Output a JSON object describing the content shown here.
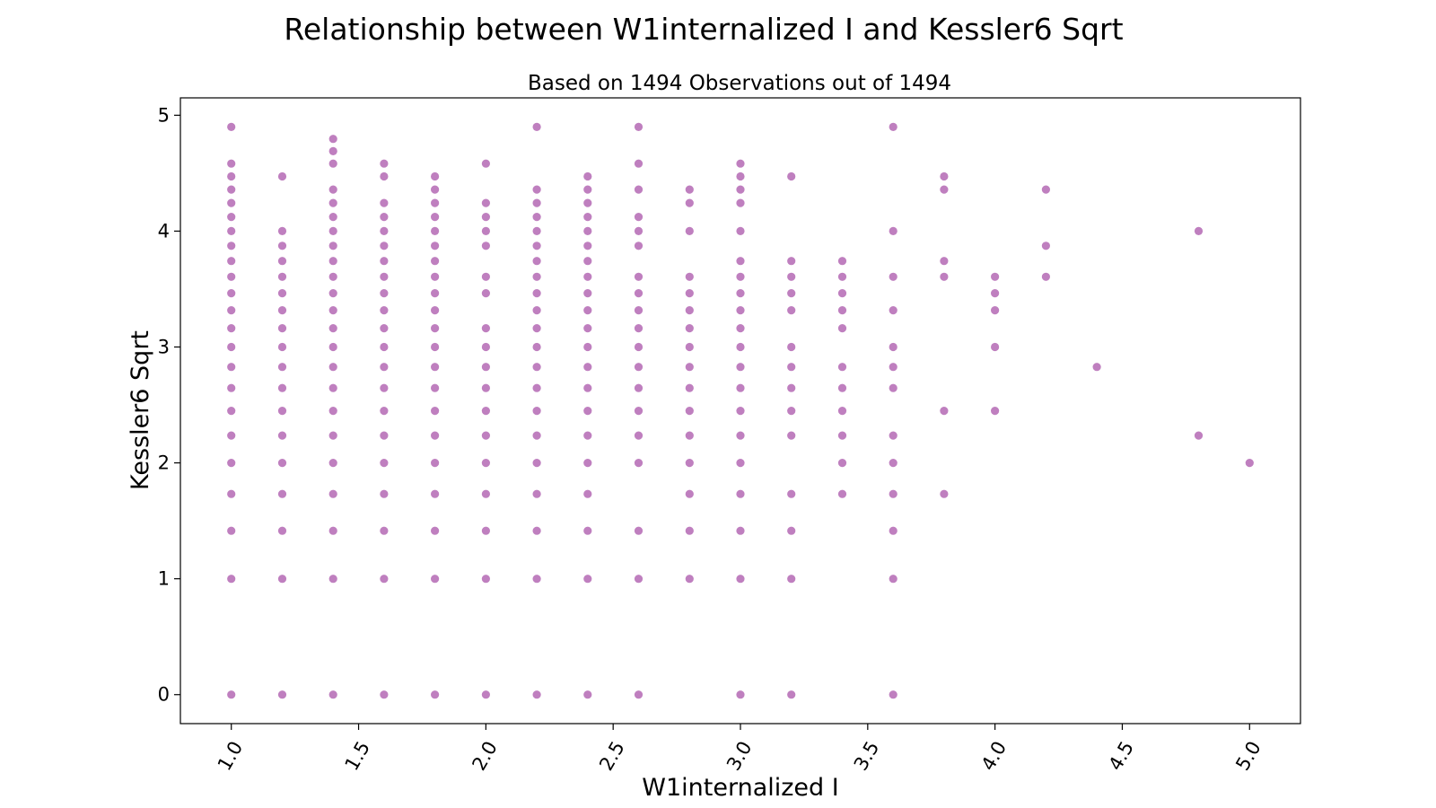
{
  "chart_data": {
    "type": "scatter",
    "title": "Relationship between W1internalized I and Kessler6 Sqrt",
    "subtitle": "Based on 1494 Observations out of 1494",
    "xlabel": "W1internalized I",
    "ylabel": "Kessler6 Sqrt",
    "xlim": [
      0.8,
      5.2
    ],
    "ylim": [
      -0.25,
      5.15
    ],
    "xticks": [
      "1.0",
      "1.5",
      "2.0",
      "2.5",
      "3.0",
      "3.5",
      "4.0",
      "4.5",
      "5.0"
    ],
    "yticks": [
      "0",
      "1",
      "2",
      "3",
      "4",
      "5"
    ],
    "tick_rotation_x": 60,
    "grid": false,
    "point_color": "#800080",
    "point_alpha": 0.5,
    "series": [
      {
        "points": [
          [
            1.0,
            0
          ],
          [
            1.0,
            1
          ],
          [
            1.0,
            1.414
          ],
          [
            1.0,
            1.732
          ],
          [
            1.0,
            2
          ],
          [
            1.0,
            2.236
          ],
          [
            1.0,
            2.449
          ],
          [
            1.0,
            2.646
          ],
          [
            1.0,
            2.828
          ],
          [
            1.0,
            3
          ],
          [
            1.0,
            3.162
          ],
          [
            1.0,
            3.317
          ],
          [
            1.0,
            3.464
          ],
          [
            1.0,
            3.606
          ],
          [
            1.0,
            3.742
          ],
          [
            1.0,
            3.873
          ],
          [
            1.0,
            4
          ],
          [
            1.0,
            4.123
          ],
          [
            1.0,
            4.243
          ],
          [
            1.0,
            4.359
          ],
          [
            1.0,
            4.472
          ],
          [
            1.0,
            4.583
          ],
          [
            1.0,
            4.899
          ],
          [
            1.2,
            0
          ],
          [
            1.2,
            1
          ],
          [
            1.2,
            1.414
          ],
          [
            1.2,
            1.732
          ],
          [
            1.2,
            2
          ],
          [
            1.2,
            2.236
          ],
          [
            1.2,
            2.449
          ],
          [
            1.2,
            2.646
          ],
          [
            1.2,
            2.828
          ],
          [
            1.2,
            3
          ],
          [
            1.2,
            3.162
          ],
          [
            1.2,
            3.317
          ],
          [
            1.2,
            3.464
          ],
          [
            1.2,
            3.606
          ],
          [
            1.2,
            3.742
          ],
          [
            1.2,
            3.873
          ],
          [
            1.2,
            4
          ],
          [
            1.2,
            4.472
          ],
          [
            1.4,
            0
          ],
          [
            1.4,
            1
          ],
          [
            1.4,
            1.414
          ],
          [
            1.4,
            1.732
          ],
          [
            1.4,
            2
          ],
          [
            1.4,
            2.236
          ],
          [
            1.4,
            2.449
          ],
          [
            1.4,
            2.646
          ],
          [
            1.4,
            2.828
          ],
          [
            1.4,
            3
          ],
          [
            1.4,
            3.162
          ],
          [
            1.4,
            3.317
          ],
          [
            1.4,
            3.464
          ],
          [
            1.4,
            3.606
          ],
          [
            1.4,
            3.742
          ],
          [
            1.4,
            3.873
          ],
          [
            1.4,
            4
          ],
          [
            1.4,
            4.123
          ],
          [
            1.4,
            4.243
          ],
          [
            1.4,
            4.359
          ],
          [
            1.4,
            4.583
          ],
          [
            1.4,
            4.69
          ],
          [
            1.4,
            4.796
          ],
          [
            1.6,
            0
          ],
          [
            1.6,
            1
          ],
          [
            1.6,
            1.414
          ],
          [
            1.6,
            1.732
          ],
          [
            1.6,
            2
          ],
          [
            1.6,
            2.236
          ],
          [
            1.6,
            2.449
          ],
          [
            1.6,
            2.646
          ],
          [
            1.6,
            2.828
          ],
          [
            1.6,
            3
          ],
          [
            1.6,
            3.162
          ],
          [
            1.6,
            3.317
          ],
          [
            1.6,
            3.464
          ],
          [
            1.6,
            3.606
          ],
          [
            1.6,
            3.742
          ],
          [
            1.6,
            3.873
          ],
          [
            1.6,
            4
          ],
          [
            1.6,
            4.123
          ],
          [
            1.6,
            4.243
          ],
          [
            1.6,
            4.472
          ],
          [
            1.6,
            4.583
          ],
          [
            1.8,
            0
          ],
          [
            1.8,
            1
          ],
          [
            1.8,
            1.414
          ],
          [
            1.8,
            1.732
          ],
          [
            1.8,
            2
          ],
          [
            1.8,
            2.236
          ],
          [
            1.8,
            2.449
          ],
          [
            1.8,
            2.646
          ],
          [
            1.8,
            2.828
          ],
          [
            1.8,
            3
          ],
          [
            1.8,
            3.162
          ],
          [
            1.8,
            3.317
          ],
          [
            1.8,
            3.464
          ],
          [
            1.8,
            3.606
          ],
          [
            1.8,
            3.742
          ],
          [
            1.8,
            3.873
          ],
          [
            1.8,
            4
          ],
          [
            1.8,
            4.123
          ],
          [
            1.8,
            4.243
          ],
          [
            1.8,
            4.359
          ],
          [
            1.8,
            4.472
          ],
          [
            2.0,
            0
          ],
          [
            2.0,
            1
          ],
          [
            2.0,
            1.414
          ],
          [
            2.0,
            1.732
          ],
          [
            2.0,
            2
          ],
          [
            2.0,
            2.236
          ],
          [
            2.0,
            2.449
          ],
          [
            2.0,
            2.646
          ],
          [
            2.0,
            2.828
          ],
          [
            2.0,
            3
          ],
          [
            2.0,
            3.162
          ],
          [
            2.0,
            3.464
          ],
          [
            2.0,
            3.606
          ],
          [
            2.0,
            3.873
          ],
          [
            2.0,
            4
          ],
          [
            2.0,
            4.123
          ],
          [
            2.0,
            4.243
          ],
          [
            2.0,
            4.583
          ],
          [
            2.2,
            0
          ],
          [
            2.2,
            1
          ],
          [
            2.2,
            1.414
          ],
          [
            2.2,
            1.732
          ],
          [
            2.2,
            2
          ],
          [
            2.2,
            2.236
          ],
          [
            2.2,
            2.449
          ],
          [
            2.2,
            2.646
          ],
          [
            2.2,
            2.828
          ],
          [
            2.2,
            3
          ],
          [
            2.2,
            3.162
          ],
          [
            2.2,
            3.317
          ],
          [
            2.2,
            3.464
          ],
          [
            2.2,
            3.606
          ],
          [
            2.2,
            3.742
          ],
          [
            2.2,
            3.873
          ],
          [
            2.2,
            4
          ],
          [
            2.2,
            4.123
          ],
          [
            2.2,
            4.243
          ],
          [
            2.2,
            4.359
          ],
          [
            2.2,
            4.899
          ],
          [
            2.4,
            0
          ],
          [
            2.4,
            1
          ],
          [
            2.4,
            1.414
          ],
          [
            2.4,
            1.732
          ],
          [
            2.4,
            2
          ],
          [
            2.4,
            2.236
          ],
          [
            2.4,
            2.449
          ],
          [
            2.4,
            2.646
          ],
          [
            2.4,
            2.828
          ],
          [
            2.4,
            3
          ],
          [
            2.4,
            3.162
          ],
          [
            2.4,
            3.317
          ],
          [
            2.4,
            3.464
          ],
          [
            2.4,
            3.606
          ],
          [
            2.4,
            3.742
          ],
          [
            2.4,
            3.873
          ],
          [
            2.4,
            4
          ],
          [
            2.4,
            4.123
          ],
          [
            2.4,
            4.243
          ],
          [
            2.4,
            4.359
          ],
          [
            2.4,
            4.472
          ],
          [
            2.6,
            0
          ],
          [
            2.6,
            1
          ],
          [
            2.6,
            1.414
          ],
          [
            2.6,
            2
          ],
          [
            2.6,
            2.236
          ],
          [
            2.6,
            2.449
          ],
          [
            2.6,
            2.646
          ],
          [
            2.6,
            2.828
          ],
          [
            2.6,
            3
          ],
          [
            2.6,
            3.162
          ],
          [
            2.6,
            3.317
          ],
          [
            2.6,
            3.464
          ],
          [
            2.6,
            3.606
          ],
          [
            2.6,
            3.873
          ],
          [
            2.6,
            4
          ],
          [
            2.6,
            4.123
          ],
          [
            2.6,
            4.359
          ],
          [
            2.6,
            4.583
          ],
          [
            2.6,
            4.899
          ],
          [
            2.8,
            1
          ],
          [
            2.8,
            1.414
          ],
          [
            2.8,
            1.732
          ],
          [
            2.8,
            2
          ],
          [
            2.8,
            2.236
          ],
          [
            2.8,
            2.449
          ],
          [
            2.8,
            2.646
          ],
          [
            2.8,
            2.828
          ],
          [
            2.8,
            3
          ],
          [
            2.8,
            3.162
          ],
          [
            2.8,
            3.317
          ],
          [
            2.8,
            3.464
          ],
          [
            2.8,
            3.606
          ],
          [
            2.8,
            4
          ],
          [
            2.8,
            4.243
          ],
          [
            2.8,
            4.359
          ],
          [
            3.0,
            0
          ],
          [
            3.0,
            1
          ],
          [
            3.0,
            1.414
          ],
          [
            3.0,
            1.732
          ],
          [
            3.0,
            2
          ],
          [
            3.0,
            2.236
          ],
          [
            3.0,
            2.449
          ],
          [
            3.0,
            2.646
          ],
          [
            3.0,
            2.828
          ],
          [
            3.0,
            3
          ],
          [
            3.0,
            3.162
          ],
          [
            3.0,
            3.317
          ],
          [
            3.0,
            3.464
          ],
          [
            3.0,
            3.606
          ],
          [
            3.0,
            3.742
          ],
          [
            3.0,
            4
          ],
          [
            3.0,
            4.243
          ],
          [
            3.0,
            4.359
          ],
          [
            3.0,
            4.472
          ],
          [
            3.0,
            4.583
          ],
          [
            3.2,
            0
          ],
          [
            3.2,
            1
          ],
          [
            3.2,
            1.414
          ],
          [
            3.2,
            1.732
          ],
          [
            3.2,
            2.236
          ],
          [
            3.2,
            2.449
          ],
          [
            3.2,
            2.646
          ],
          [
            3.2,
            2.828
          ],
          [
            3.2,
            3
          ],
          [
            3.2,
            3.317
          ],
          [
            3.2,
            3.464
          ],
          [
            3.2,
            3.606
          ],
          [
            3.2,
            3.742
          ],
          [
            3.2,
            4.472
          ],
          [
            3.4,
            1.732
          ],
          [
            3.4,
            2
          ],
          [
            3.4,
            2.236
          ],
          [
            3.4,
            2.449
          ],
          [
            3.4,
            2.646
          ],
          [
            3.4,
            2.828
          ],
          [
            3.4,
            3.162
          ],
          [
            3.4,
            3.317
          ],
          [
            3.4,
            3.464
          ],
          [
            3.4,
            3.606
          ],
          [
            3.4,
            3.742
          ],
          [
            3.6,
            0
          ],
          [
            3.6,
            1
          ],
          [
            3.6,
            1.414
          ],
          [
            3.6,
            1.732
          ],
          [
            3.6,
            2
          ],
          [
            3.6,
            2.236
          ],
          [
            3.6,
            2.646
          ],
          [
            3.6,
            2.828
          ],
          [
            3.6,
            3
          ],
          [
            3.6,
            3.317
          ],
          [
            3.6,
            3.606
          ],
          [
            3.6,
            4
          ],
          [
            3.6,
            4.899
          ],
          [
            3.8,
            1.732
          ],
          [
            3.8,
            2.449
          ],
          [
            3.8,
            3.606
          ],
          [
            3.8,
            3.742
          ],
          [
            3.8,
            4.359
          ],
          [
            3.8,
            4.472
          ],
          [
            4.0,
            2.449
          ],
          [
            4.0,
            3
          ],
          [
            4.0,
            3.317
          ],
          [
            4.0,
            3.464
          ],
          [
            4.0,
            3.606
          ],
          [
            4.2,
            3.606
          ],
          [
            4.2,
            3.873
          ],
          [
            4.2,
            4.359
          ],
          [
            4.4,
            2.828
          ],
          [
            4.8,
            2.236
          ],
          [
            4.8,
            4
          ],
          [
            5.0,
            2
          ]
        ]
      }
    ]
  }
}
